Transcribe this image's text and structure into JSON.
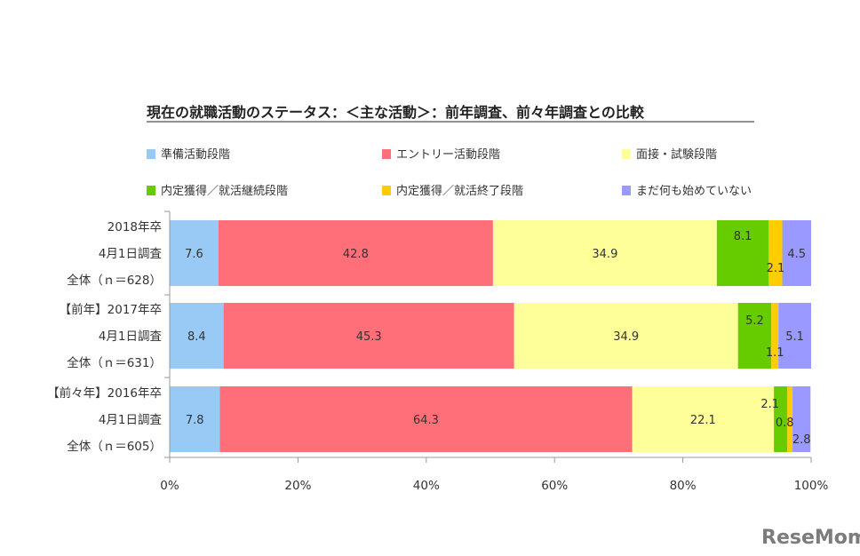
{
  "chart_data": {
    "type": "bar",
    "orientation": "horizontal",
    "stacked": true,
    "title": "現在の就職活動のステータス：＜主な活動＞：前年調査、前々年調査との比較",
    "categories": [
      [
        "2018年卒",
        "4月1日調査",
        "全体（ｎ＝628）"
      ],
      [
        "【前年】2017年卒",
        "4月1日調査",
        "全体（ｎ＝631）"
      ],
      [
        "【前々年】2016年卒",
        "4月1日調査",
        "全体（ｎ＝605）"
      ]
    ],
    "series": [
      {
        "name": "準備活動段階",
        "color": "#99c9f5",
        "values": [
          7.6,
          8.4,
          7.8
        ]
      },
      {
        "name": "エントリー活動段階",
        "color": "#ff6f7a",
        "values": [
          42.8,
          45.3,
          64.3
        ]
      },
      {
        "name": "面接・試験段階",
        "color": "#ffff99",
        "values": [
          34.9,
          34.9,
          22.1
        ]
      },
      {
        "name": "内定獲得／就活継続段階",
        "color": "#66cc00",
        "values": [
          8.1,
          5.2,
          2.1
        ]
      },
      {
        "name": "内定獲得／就活終了段階",
        "color": "#ffcc00",
        "values": [
          2.1,
          1.1,
          0.8
        ]
      },
      {
        "name": "まだ何も始めていない",
        "color": "#9999ff",
        "values": [
          4.5,
          5.1,
          2.8
        ]
      }
    ],
    "x_ticks": [
      "0%",
      "20%",
      "40%",
      "60%",
      "80%",
      "100%"
    ],
    "xlim": [
      0,
      100
    ],
    "legend_position": "top",
    "grid": false
  },
  "watermark": "ReseMom"
}
